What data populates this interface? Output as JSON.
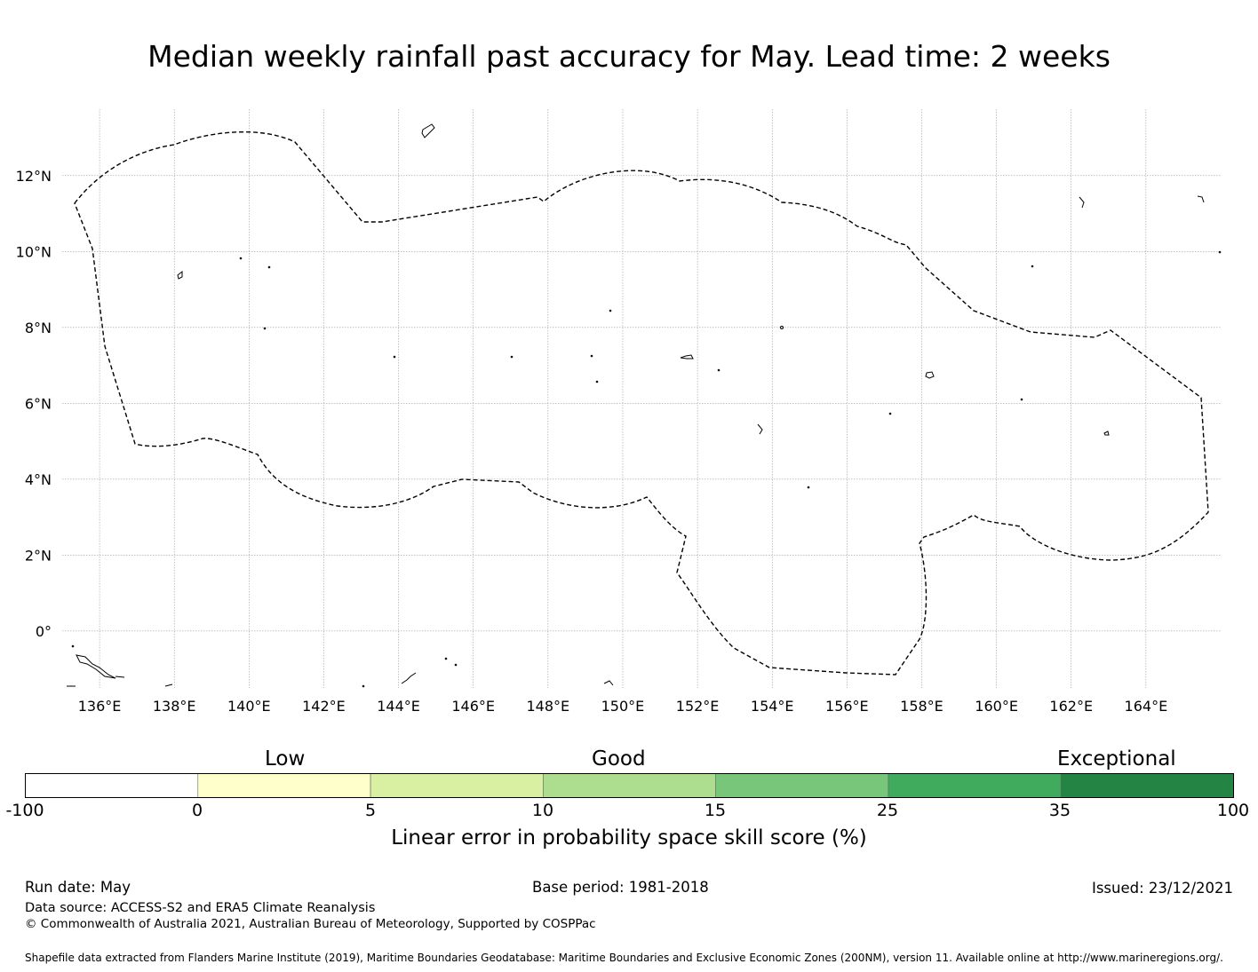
{
  "title": "Median weekly rainfall past accuracy for May. Lead time: 2 weeks",
  "map": {
    "lon_labels": [
      "136°E",
      "138°E",
      "140°E",
      "142°E",
      "144°E",
      "146°E",
      "148°E",
      "150°E",
      "152°E",
      "154°E",
      "156°E",
      "158°E",
      "160°E",
      "162°E",
      "164°E"
    ],
    "lat_labels": [
      "12°N",
      "10°N",
      "8°N",
      "6°N",
      "4°N",
      "2°N",
      "0°"
    ],
    "lon_range": [
      135.0,
      166.0
    ],
    "lat_range": [
      -1.5,
      13.75
    ],
    "gridlines": true
  },
  "colorbar": {
    "categories": [
      "Low",
      "Good",
      "Exceptional"
    ],
    "ticks": [
      "-100",
      "0",
      "5",
      "10",
      "15",
      "25",
      "35",
      "100"
    ],
    "colors": [
      "#ffffff",
      "#ffffcc",
      "#d9f0a3",
      "#addd8e",
      "#78c679",
      "#41ab5d",
      "#238443"
    ],
    "label": "Linear error in probability space skill score (%)"
  },
  "footer": {
    "run_date": "Run date: May",
    "base_period": "Base period: 1981-2018",
    "issued": "Issued: 23/12/2021",
    "data_source": "Data source: ACCESS-S2 and ERA5 Climate Reanalysis",
    "copyright": "© Commonwealth of Australia 2021, Australian Bureau of Meteorology, Supported by COSPPac",
    "shapefile": "Shapefile data extracted from Flanders Marine Institute (2019), Maritime Boundaries Geodatabase: Maritime Boundaries and Exclusive Economic Zones (200NM), version 11. Available online at http://www.marineregions.org/."
  }
}
